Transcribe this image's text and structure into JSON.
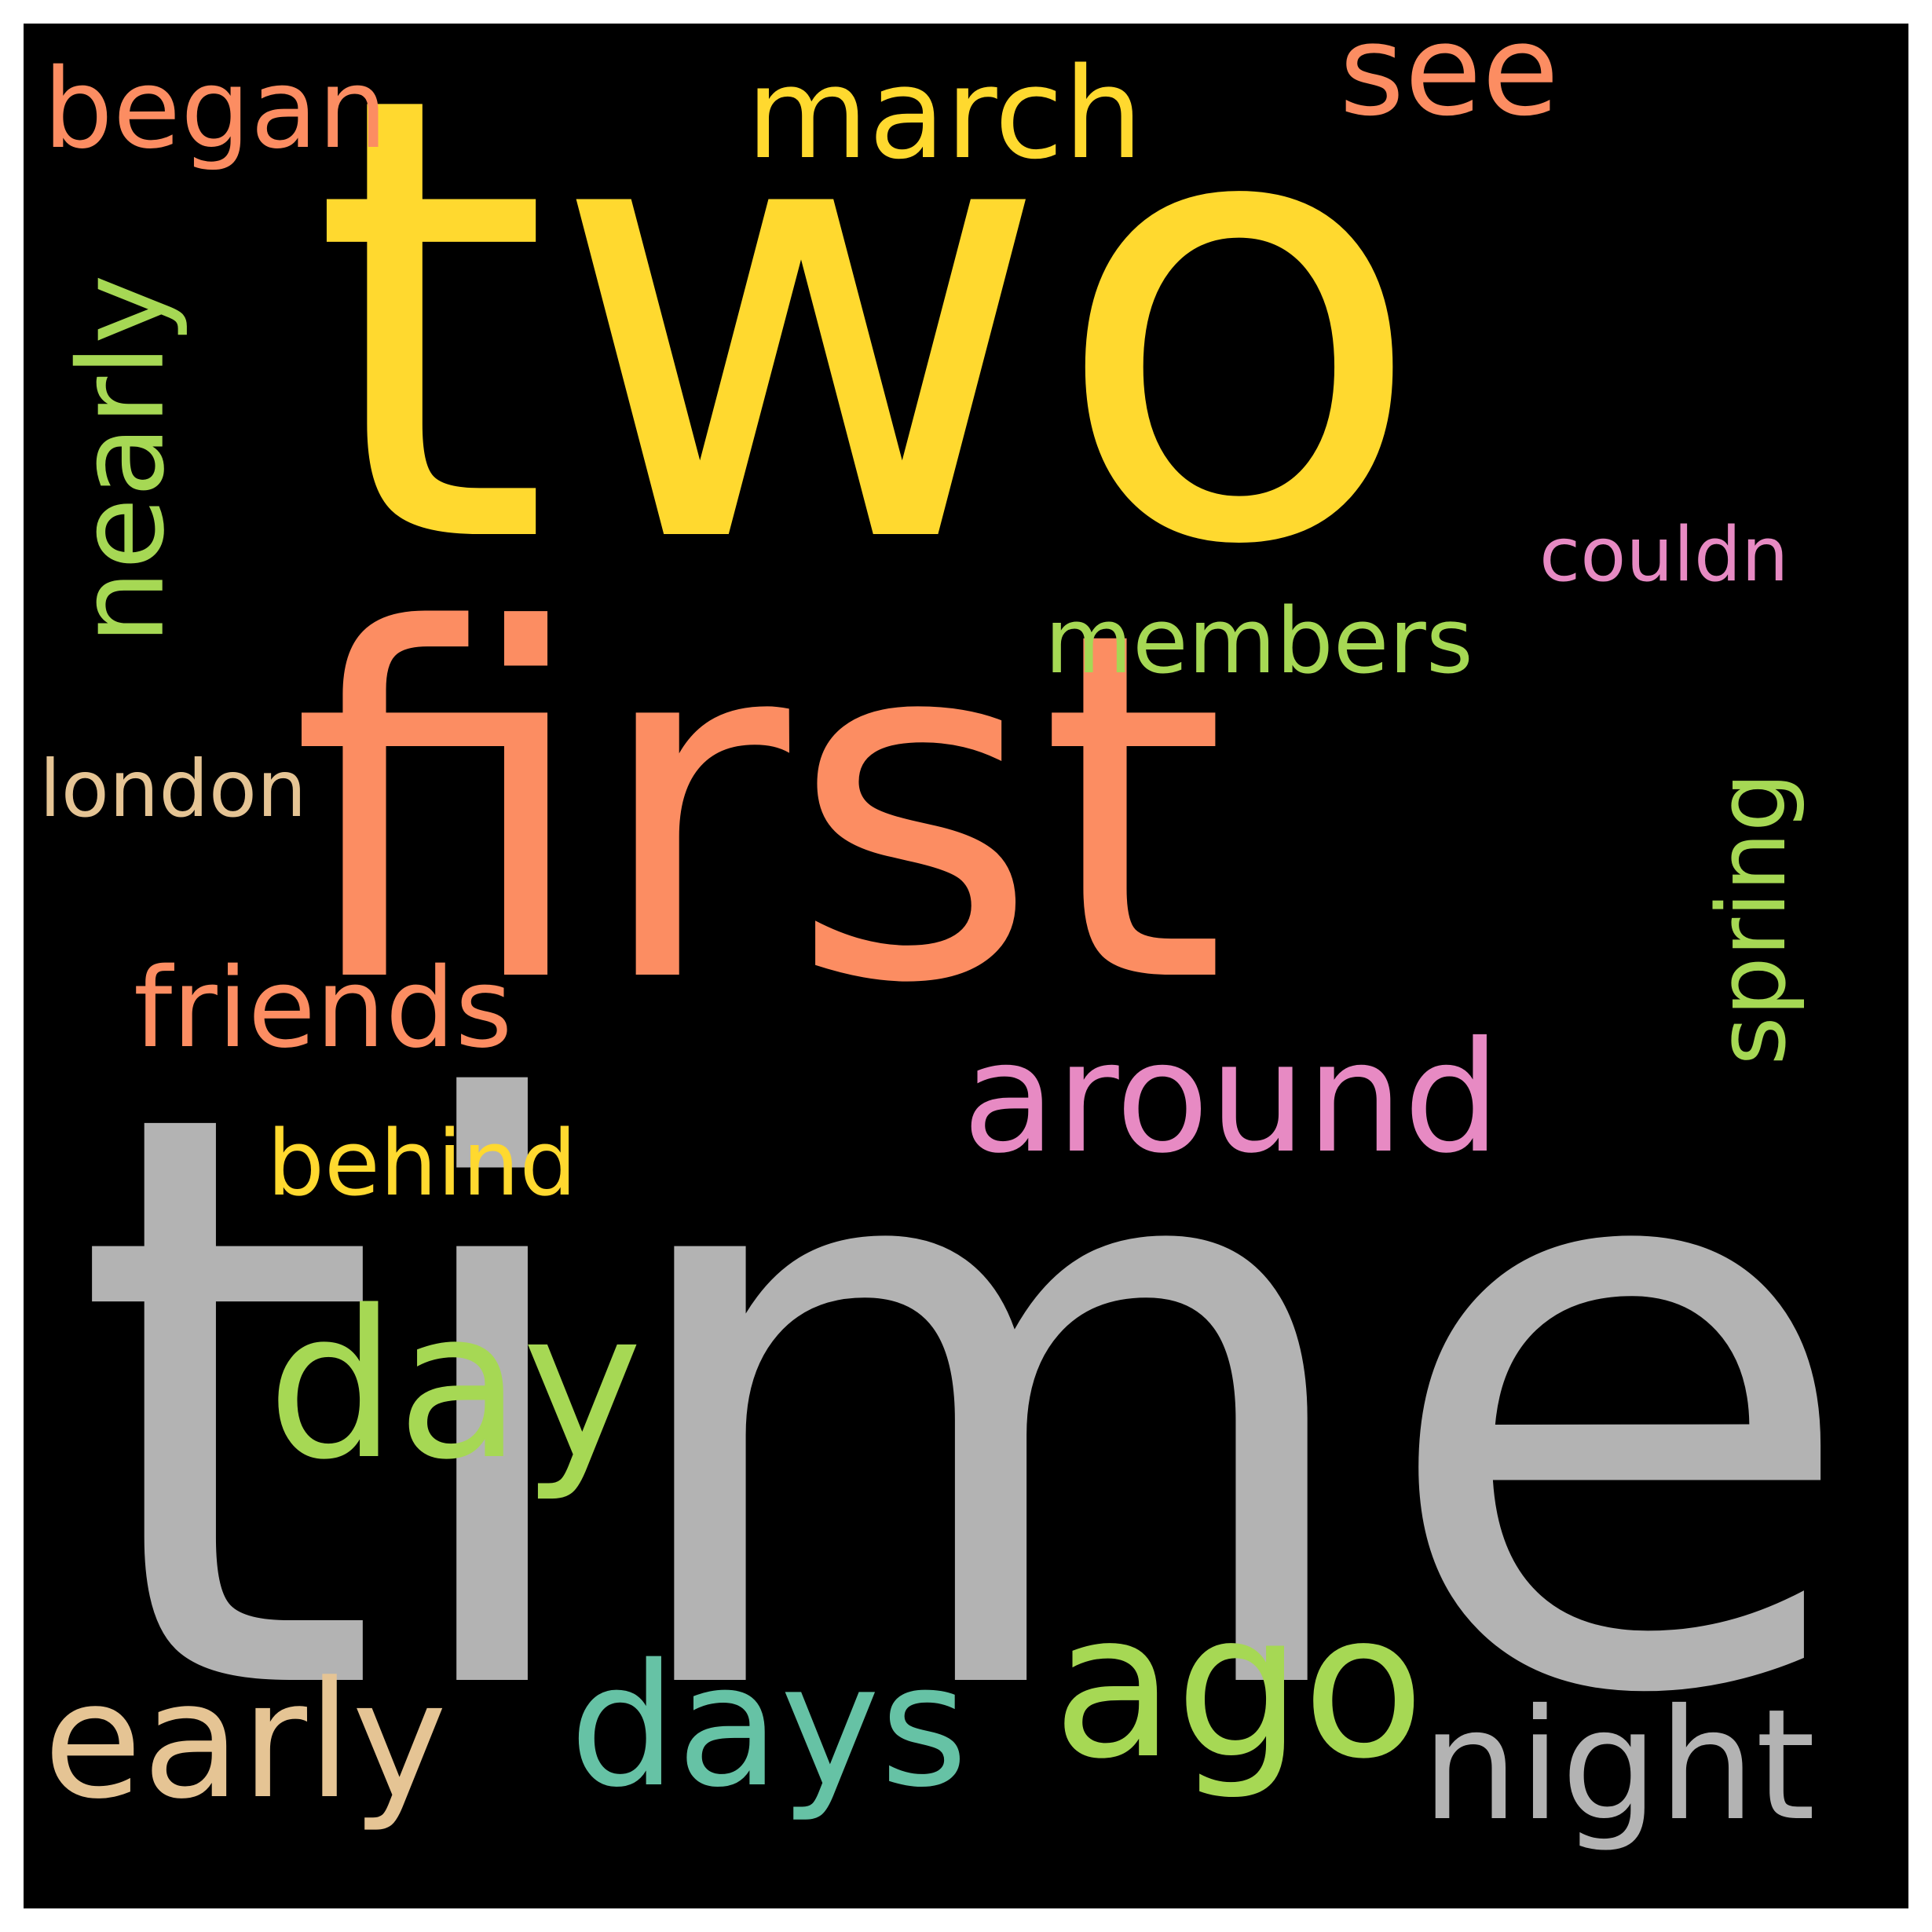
{
  "words": [
    {
      "text": "time",
      "color": "#b3b3b3",
      "orientation": "horizontal"
    },
    {
      "text": "two",
      "color": "#ffd92f",
      "orientation": "horizontal"
    },
    {
      "text": "first",
      "color": "#fc8d62",
      "orientation": "horizontal"
    },
    {
      "text": "day",
      "color": "#a6d854",
      "orientation": "horizontal"
    },
    {
      "text": "ago",
      "color": "#a6d854",
      "orientation": "horizontal"
    },
    {
      "text": "days",
      "color": "#66c2a5",
      "orientation": "horizontal"
    },
    {
      "text": "early",
      "color": "#e5c494",
      "orientation": "horizontal"
    },
    {
      "text": "night",
      "color": "#b3b3b3",
      "orientation": "horizontal"
    },
    {
      "text": "around",
      "color": "#e78ac3",
      "orientation": "horizontal"
    },
    {
      "text": "march",
      "color": "#ffd92f",
      "orientation": "horizontal"
    },
    {
      "text": "see",
      "color": "#fc8d62",
      "orientation": "horizontal"
    },
    {
      "text": "began",
      "color": "#fc8d62",
      "orientation": "horizontal"
    },
    {
      "text": "friends",
      "color": "#fc8d62",
      "orientation": "horizontal"
    },
    {
      "text": "behind",
      "color": "#ffd92f",
      "orientation": "horizontal"
    },
    {
      "text": "members",
      "color": "#a6d854",
      "orientation": "horizontal"
    },
    {
      "text": "couldn",
      "color": "#e78ac3",
      "orientation": "horizontal"
    },
    {
      "text": "london",
      "color": "#e5c494",
      "orientation": "horizontal"
    },
    {
      "text": "nearly",
      "color": "#a6d854",
      "orientation": "vertical"
    },
    {
      "text": "spring",
      "color": "#a6d854",
      "orientation": "vertical"
    }
  ],
  "background": "#000000"
}
